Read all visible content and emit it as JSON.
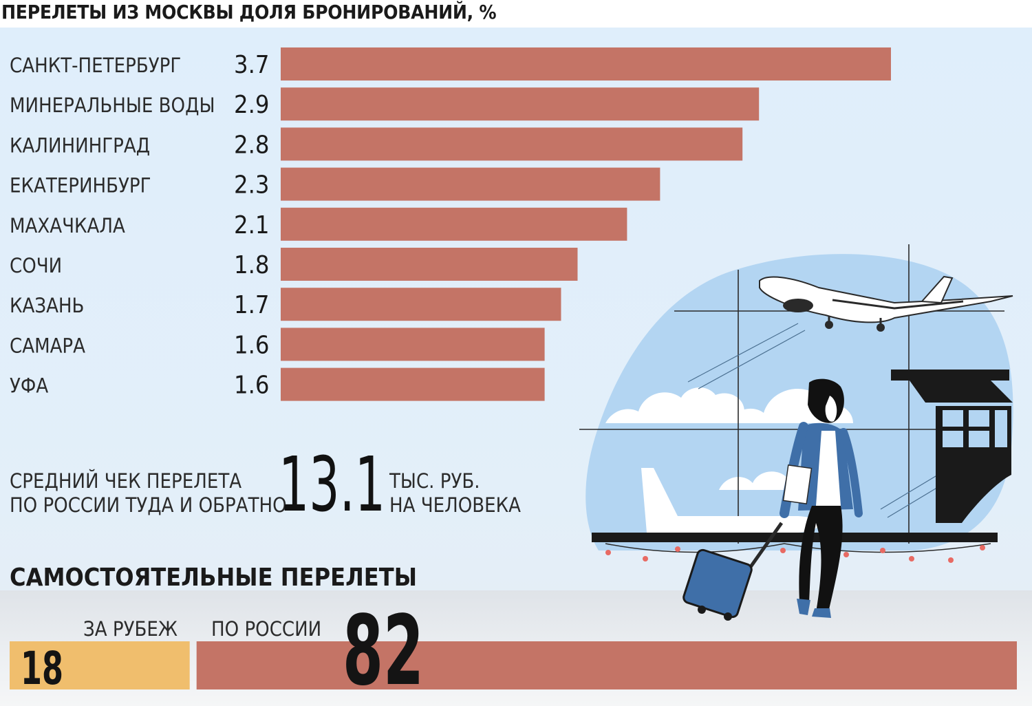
{
  "title": "ПЕРЕЛЕТЫ ИЗ МОСКВЫ ДОЛЯ БРОНИРОВАНИЙ, %",
  "colors": {
    "bar": "#c47466",
    "abroad": "#f0be6d",
    "sky": "#b3d5f2",
    "dark": "#111111"
  },
  "chart_data": {
    "type": "bar",
    "orientation": "horizontal",
    "title": "ПЕРЕЛЕТЫ ИЗ МОСКВЫ ДОЛЯ БРОНИРОВАНИЙ, %",
    "categories": [
      "САНКТ-ПЕТЕРБУРГ",
      "МИНЕРАЛЬНЫЕ ВОДЫ",
      "КАЛИНИНГРАД",
      "ЕКАТЕРИНБУРГ",
      "МАХАЧКАЛА",
      "СОЧИ",
      "КАЗАНЬ",
      "САМАРА",
      "УФА"
    ],
    "values": [
      3.7,
      2.9,
      2.8,
      2.3,
      2.1,
      1.8,
      1.7,
      1.6,
      1.6
    ],
    "value_labels": [
      "3.7",
      "2.9",
      "2.8",
      "2.3",
      "2.1",
      "1.8",
      "1.7",
      "1.6",
      "1.6"
    ],
    "xlim": [
      0,
      3.7
    ],
    "grid": false,
    "legend": "none"
  },
  "average": {
    "label_line1": "СРЕДНИЙ ЧЕК ПЕРЕЛЕТА",
    "label_line2": "ПО РОССИИ ТУДА И ОБРАТНО",
    "value": "13.1",
    "unit_line1": "ТЫС. РУБ.",
    "unit_line2": "НА ЧЕЛОВЕКА"
  },
  "independent": {
    "title": "САМОСТОЯТЕЛЬНЫЕ ПЕРЕЛЕТЫ",
    "chart_data": {
      "type": "bar",
      "stacked": true,
      "categories": [
        "ЗА РУБЕЖ",
        "ПО РОССИИ"
      ],
      "values": [
        18,
        82
      ],
      "value_labels": [
        "18",
        "82"
      ]
    }
  }
}
